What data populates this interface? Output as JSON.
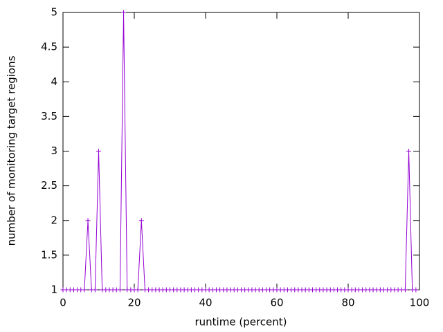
{
  "chart_data": {
    "type": "line",
    "xlabel": "runtime (percent)",
    "ylabel": "number of monitoring target regions",
    "color": "#9400d3",
    "marker": "+",
    "x": [
      0,
      1,
      2,
      3,
      4,
      5,
      6,
      7,
      8,
      9,
      10,
      11,
      12,
      13,
      14,
      15,
      16,
      17,
      18,
      19,
      20,
      21,
      22,
      23,
      24,
      25,
      26,
      27,
      28,
      29,
      30,
      31,
      32,
      33,
      34,
      35,
      36,
      37,
      38,
      39,
      40,
      41,
      42,
      43,
      44,
      45,
      46,
      47,
      48,
      49,
      50,
      51,
      52,
      53,
      54,
      55,
      56,
      57,
      58,
      59,
      60,
      61,
      62,
      63,
      64,
      65,
      66,
      67,
      68,
      69,
      70,
      71,
      72,
      73,
      74,
      75,
      76,
      77,
      78,
      79,
      80,
      81,
      82,
      83,
      84,
      85,
      86,
      87,
      88,
      89,
      90,
      91,
      92,
      93,
      94,
      95,
      96,
      97,
      98,
      99
    ],
    "values": [
      1,
      1,
      1,
      1,
      1,
      1,
      1,
      2,
      1,
      1,
      3,
      1,
      1,
      1,
      1,
      1,
      1,
      5,
      1,
      1,
      1,
      1,
      2,
      1,
      1,
      1,
      1,
      1,
      1,
      1,
      1,
      1,
      1,
      1,
      1,
      1,
      1,
      1,
      1,
      1,
      1,
      1,
      1,
      1,
      1,
      1,
      1,
      1,
      1,
      1,
      1,
      1,
      1,
      1,
      1,
      1,
      1,
      1,
      1,
      1,
      1,
      1,
      1,
      1,
      1,
      1,
      1,
      1,
      1,
      1,
      1,
      1,
      1,
      1,
      1,
      1,
      1,
      1,
      1,
      1,
      1,
      1,
      1,
      1,
      1,
      1,
      1,
      1,
      1,
      1,
      1,
      1,
      1,
      1,
      1,
      1,
      1,
      3,
      1,
      1
    ],
    "xlim": [
      0,
      100
    ],
    "xticks": [
      0,
      20,
      40,
      60,
      80,
      100
    ],
    "ylim": [
      1,
      5
    ],
    "yticks": [
      1,
      1.5,
      2,
      2.5,
      3,
      3.5,
      4,
      4.5,
      5
    ]
  }
}
